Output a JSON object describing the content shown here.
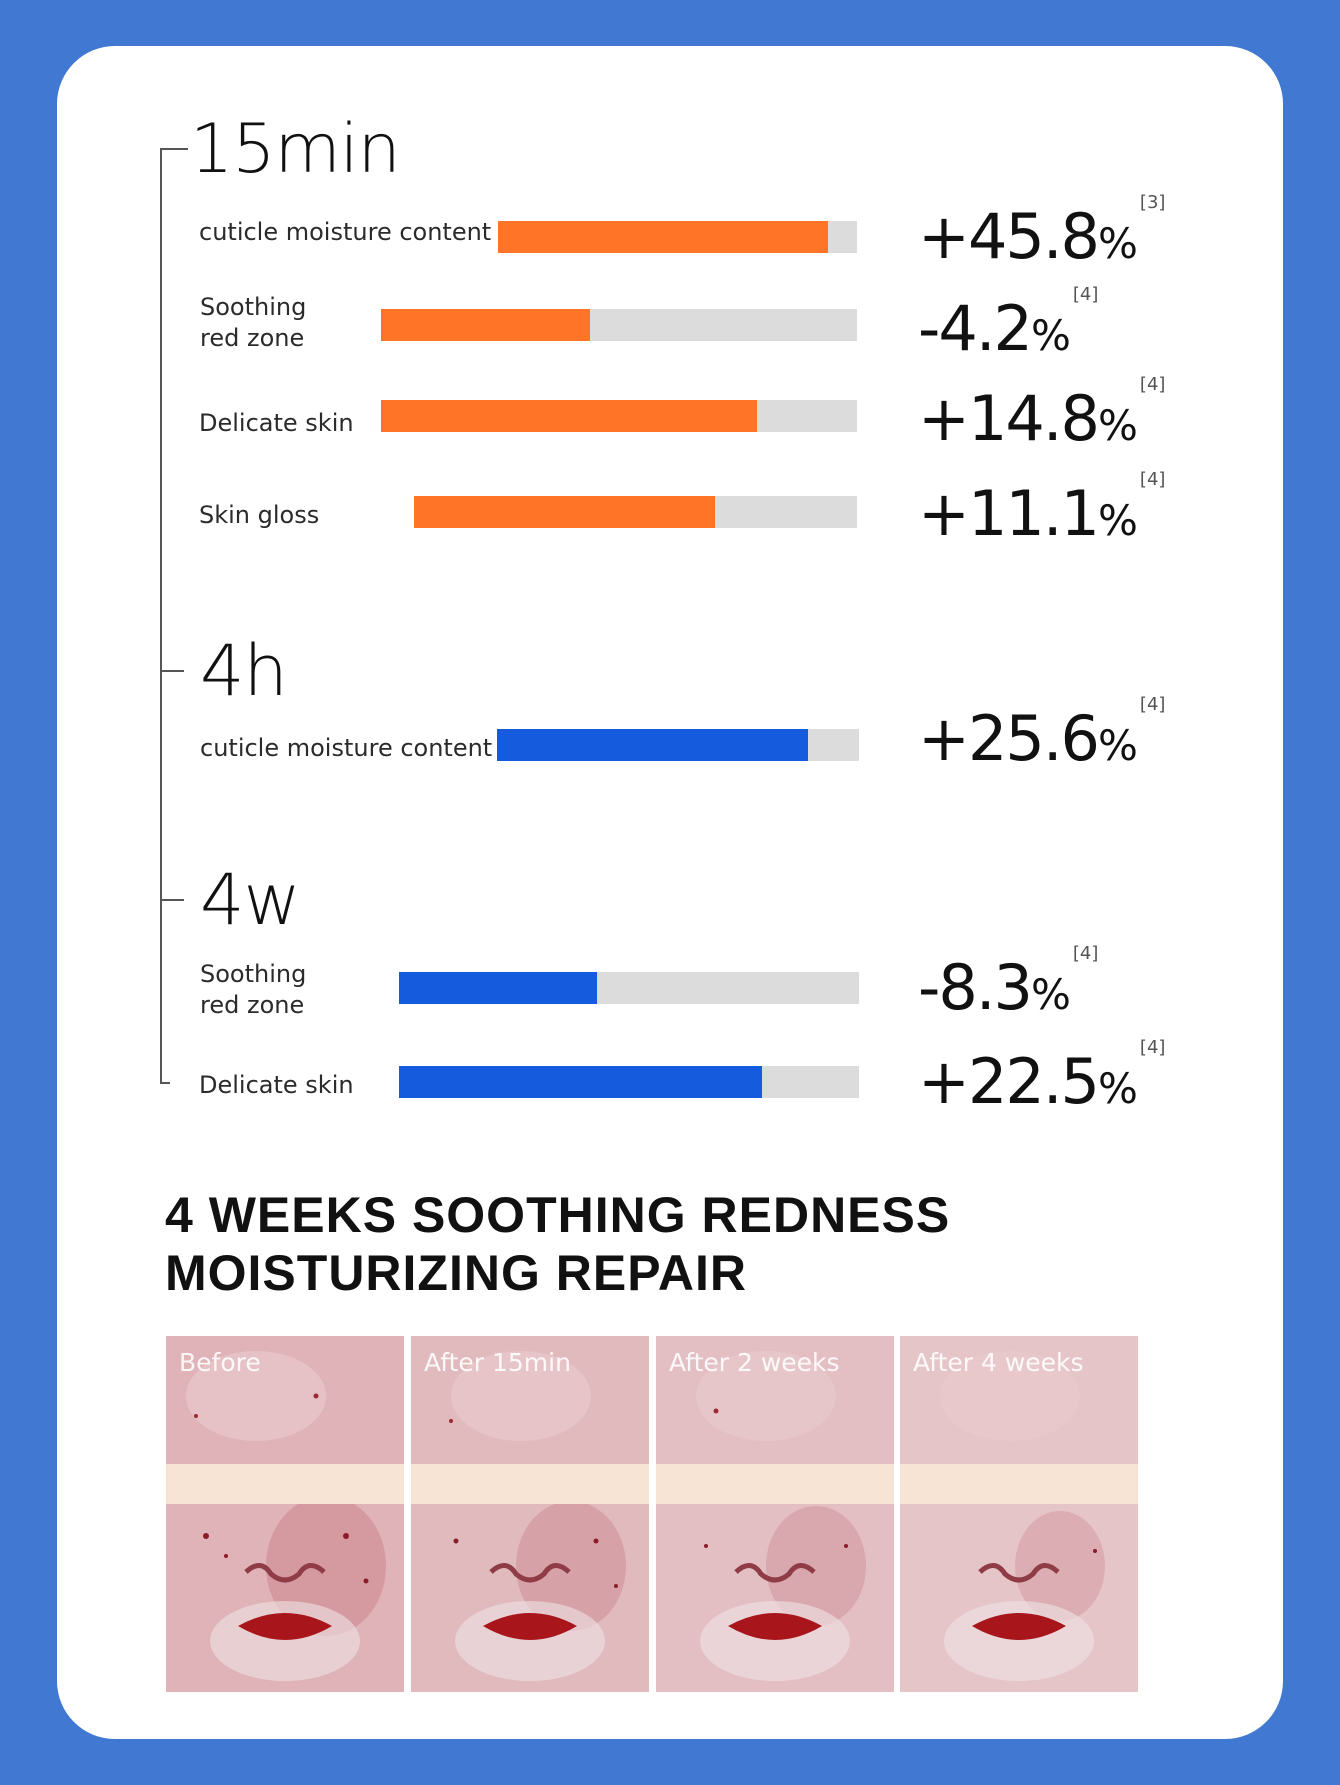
{
  "colors": {
    "background": "#4178d2",
    "card": "#ffffff",
    "bar_orange": "#ff7426",
    "bar_blue": "#155bde",
    "bar_track": "#dcdcdc",
    "photo_band": "#f8e4d4"
  },
  "sections": [
    {
      "time": "15min",
      "rows": [
        {
          "label": "cuticle moisture content",
          "value": "+45.8",
          "unit": "%",
          "ref": "[3]",
          "fill": 0.92
        },
        {
          "label_line1": "Soothing",
          "label_line2": "red zone",
          "value": "-4.2",
          "unit": "%",
          "ref": "[4]",
          "fill": 0.44
        },
        {
          "label": "Delicate skin",
          "value": "+14.8",
          "unit": "%",
          "ref": "[4]",
          "fill": 0.79
        },
        {
          "label": "Skin gloss",
          "value": "+11.1",
          "unit": "%",
          "ref": "[4]",
          "fill": 0.68
        }
      ]
    },
    {
      "time": "4h",
      "rows": [
        {
          "label": "cuticle moisture content",
          "value": "+25.6",
          "unit": "%",
          "ref": "[4]",
          "fill": 0.86
        }
      ]
    },
    {
      "time": "4w",
      "rows": [
        {
          "label_line1": "Soothing",
          "label_line2": "red zone",
          "value": "-8.3",
          "unit": "%",
          "ref": "[4]",
          "fill": 0.43
        },
        {
          "label": "Delicate skin",
          "value": "+22.5",
          "unit": "%",
          "ref": "[4]",
          "fill": 0.79
        }
      ]
    }
  ],
  "title_line1": "4 WEEKS SOOTHING REDNESS",
  "title_line2": "MOISTURIZING REPAIR",
  "photos": [
    {
      "label": "Before"
    },
    {
      "label": "After 15min"
    },
    {
      "label": "After 2 weeks"
    },
    {
      "label": "After 4 weeks"
    }
  ]
}
